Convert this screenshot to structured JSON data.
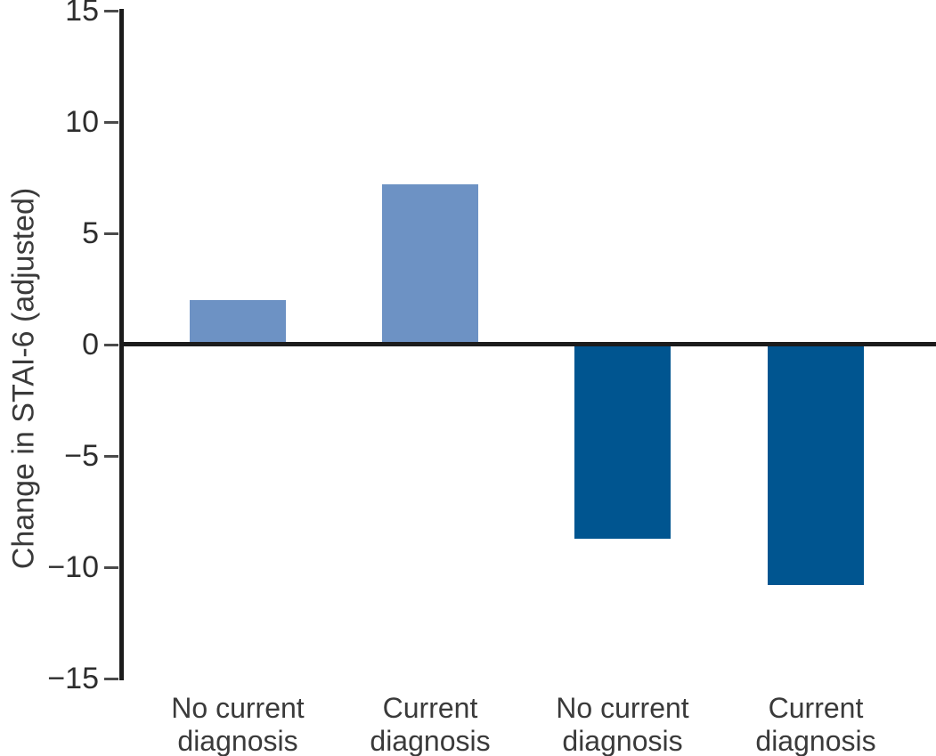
{
  "chart_data": {
    "type": "bar",
    "title": "",
    "xlabel": "",
    "ylabel": "Change in STAI-6 (adjusted)",
    "ylim": [
      -15,
      15
    ],
    "yticks": [
      15,
      10,
      5,
      0,
      -5,
      -10,
      -15
    ],
    "categories": [
      "No current diagnosis",
      "Current diagnosis",
      "No current diagnosis",
      "Current diagnosis"
    ],
    "values": [
      2.0,
      7.2,
      -8.7,
      -10.8
    ],
    "bar_colors": [
      "#6D92C4",
      "#6D92C4",
      "#005590",
      "#005590"
    ],
    "axis_color": "#1C1C1C",
    "text_color": "#3A3A3A",
    "grid": false,
    "legend": "none"
  }
}
